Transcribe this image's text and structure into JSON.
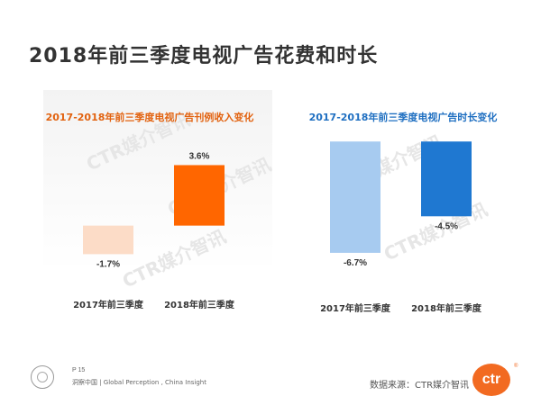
{
  "title": "2018年前三季度电视广告花费和时长",
  "chart_data": [
    {
      "type": "bar",
      "title": "2017-2018年前三季度电视广告刊例收入变化",
      "categories": [
        "2017年前三季度",
        "2018年前三季度"
      ],
      "values": [
        -1.7,
        3.6
      ],
      "value_labels": [
        "-1.7%",
        "3.6%"
      ],
      "colors": [
        "#fcdcc7",
        "#ff6600"
      ],
      "title_color": "#e2620f",
      "ylim": [
        -3.5,
        5.5
      ],
      "grid": false
    },
    {
      "type": "bar",
      "title": "2017-2018年前三季度电视广告时长变化",
      "categories": [
        "2017年前三季度",
        "2018年前三季度"
      ],
      "values": [
        -6.7,
        -4.5
      ],
      "value_labels": [
        "-6.7%",
        "-4.5%"
      ],
      "colors": [
        "#a7cbf0",
        "#1f78d1"
      ],
      "title_color": "#1f6fc1",
      "ylim": [
        -8.6,
        0.5
      ],
      "grid": false
    }
  ],
  "watermark": "CTR媒介智讯",
  "footer": {
    "page": "P 15",
    "tagline": "洞察中国 | Global Perception , China Insight",
    "source": "数据来源：CTR媒介智讯",
    "logo_text": "ctr",
    "logo_mark": "®"
  }
}
